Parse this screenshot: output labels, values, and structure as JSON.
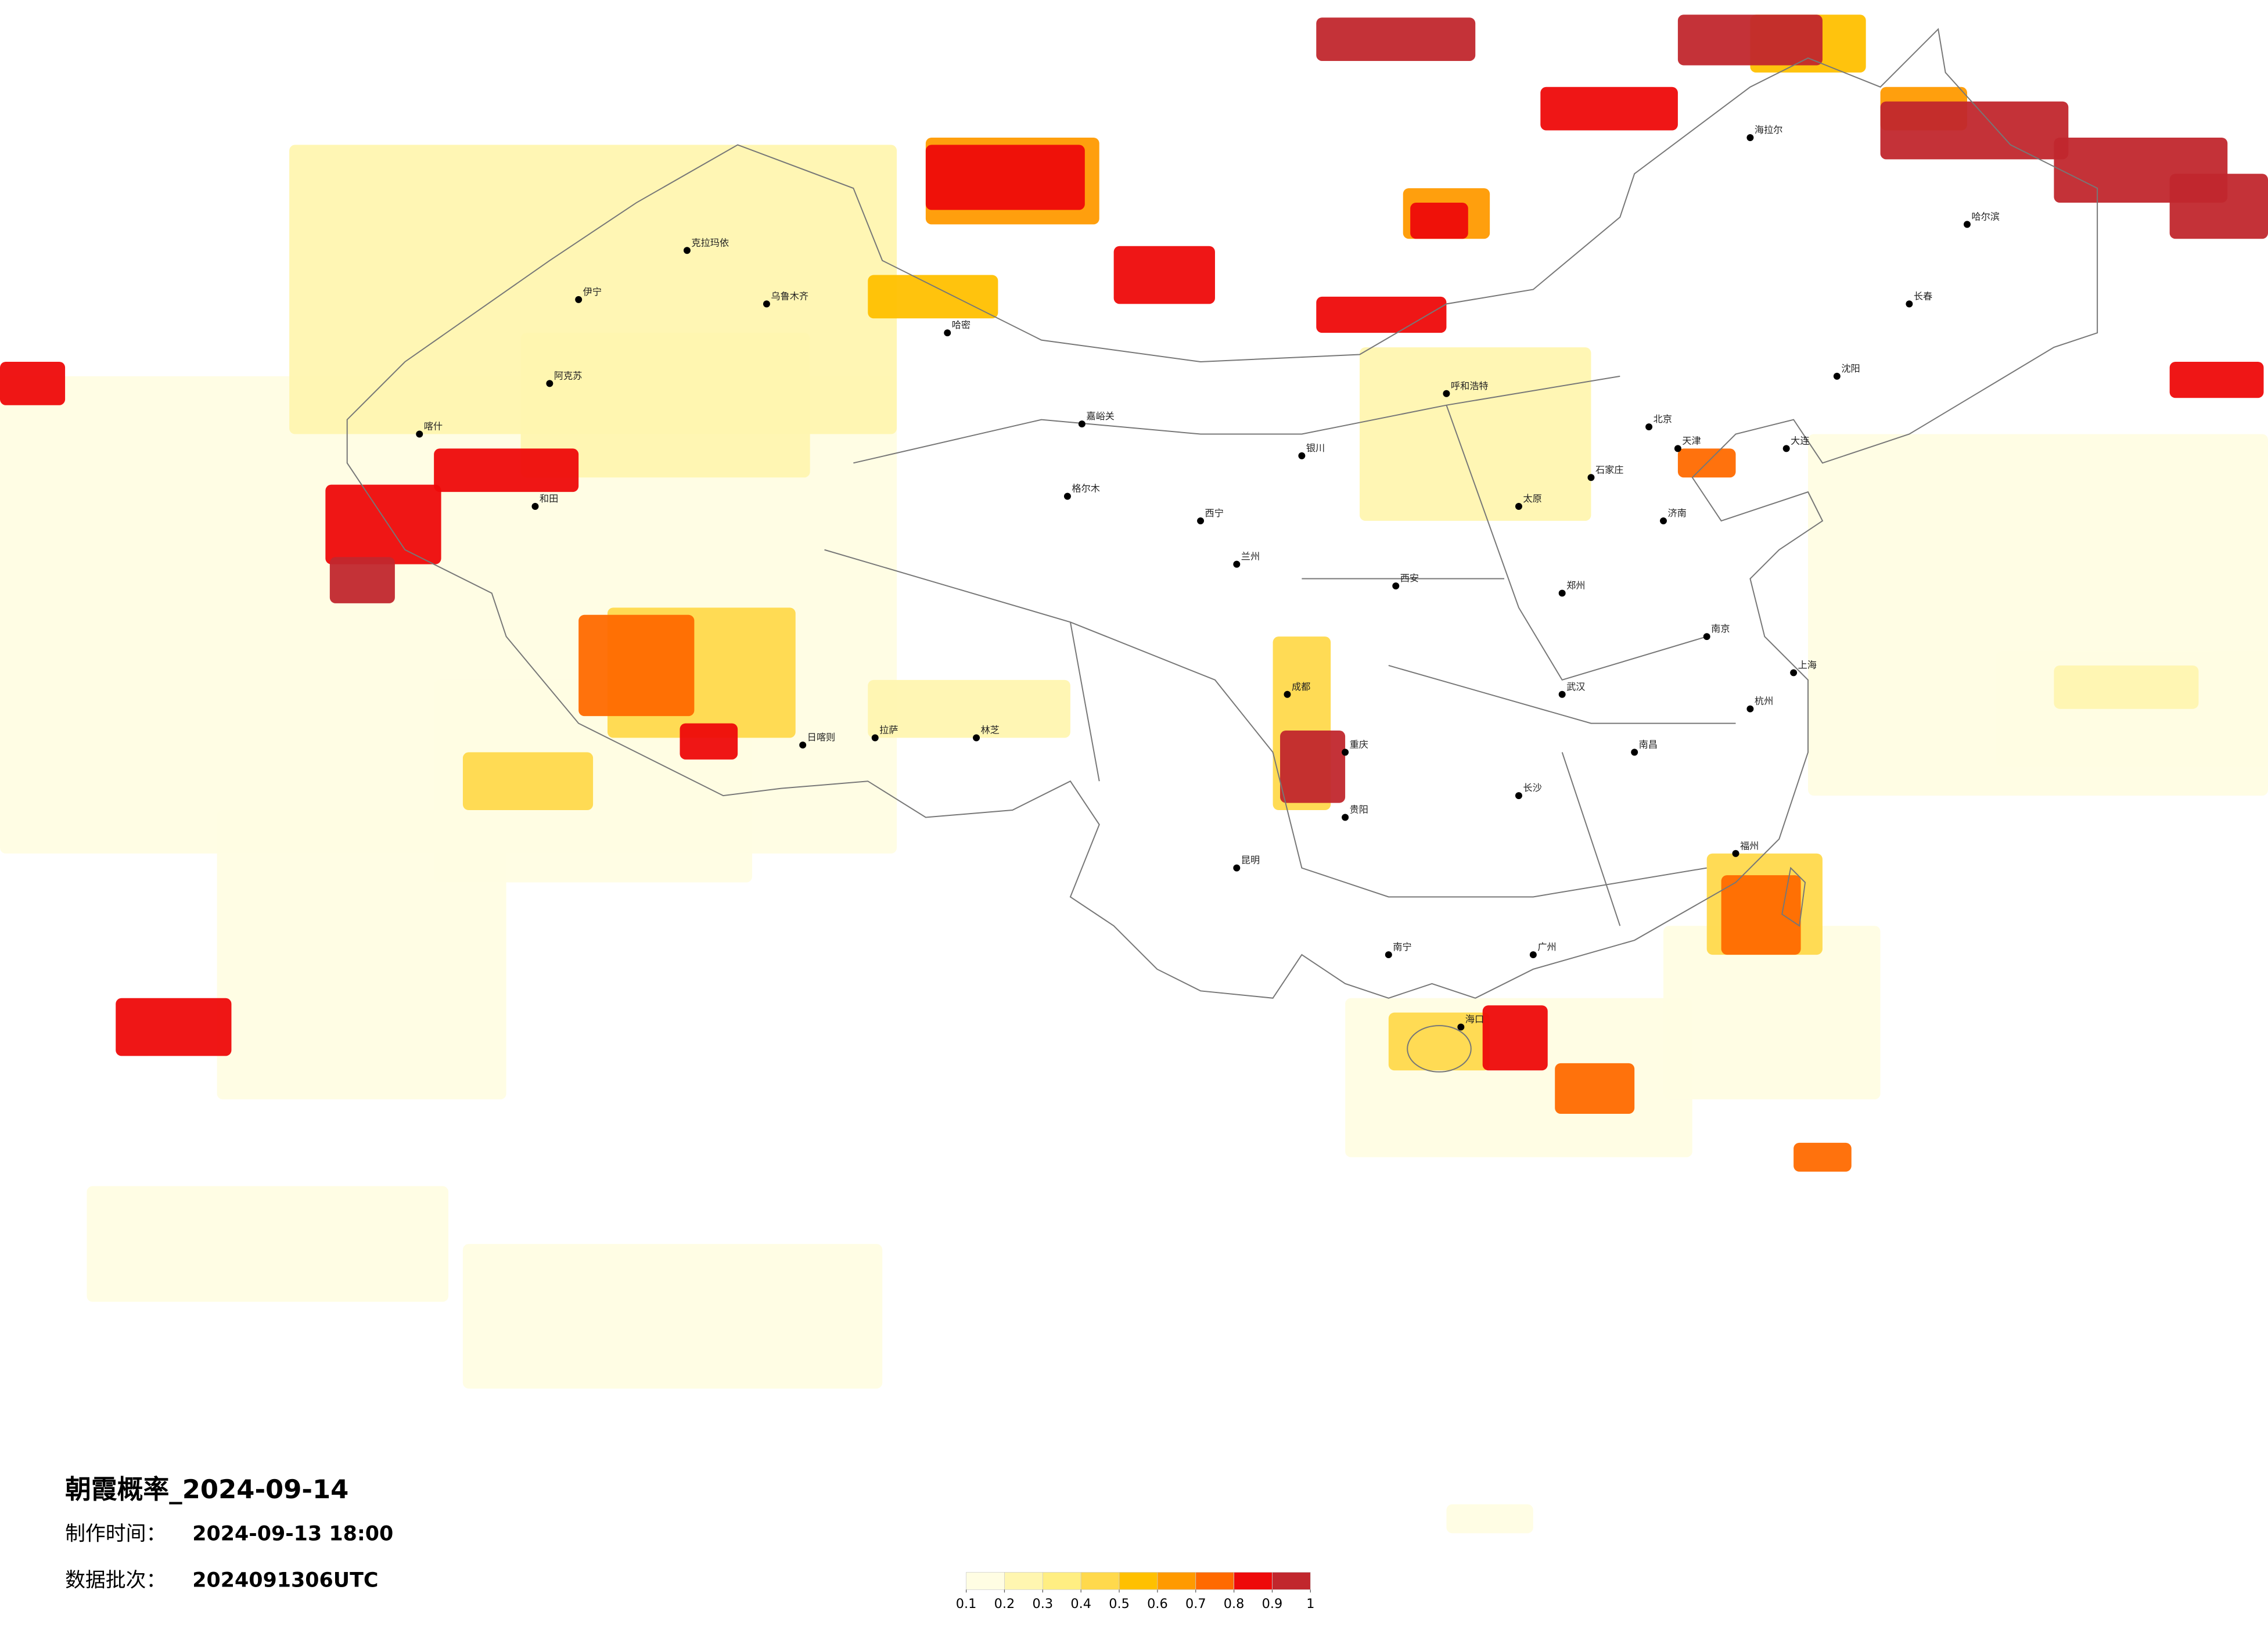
{
  "title": "朝霞概率_2024-09-14",
  "production_time": {
    "label": "制作时间：",
    "value": "2024-09-13 18:00"
  },
  "data_batch": {
    "label": "数据批次：",
    "value": "2024091306UTC"
  },
  "colorbar": {
    "ticks": [
      0.1,
      0.2,
      0.3,
      0.4,
      0.5,
      0.6,
      0.7,
      0.8,
      0.9,
      1
    ],
    "colors": [
      "#fffde3",
      "#fff6b0",
      "#ffee82",
      "#ffd94c",
      "#ffc000",
      "#ff9a00",
      "#ff6a00",
      "#ee0a0a",
      "#c1272d"
    ]
  },
  "cities": [
    "乌鲁木齐",
    "克拉玛依",
    "伊宁",
    "阿克苏",
    "喀什",
    "和田",
    "哈密",
    "嘉峪关",
    "格尔木",
    "拉萨",
    "日喀则",
    "林芝",
    "西宁",
    "兰州",
    "银川",
    "呼和浩特",
    "北京",
    "天津",
    "哈尔滨",
    "长春",
    "沈阳",
    "大连",
    "济南",
    "郑州",
    "西安",
    "成都",
    "重庆",
    "武汉",
    "长沙",
    "南京",
    "上海",
    "杭州",
    "福州",
    "广州",
    "南宁",
    "昆明",
    "贵阳",
    "海口",
    "南昌",
    "太原",
    "石家庄",
    "海拉尔"
  ]
}
